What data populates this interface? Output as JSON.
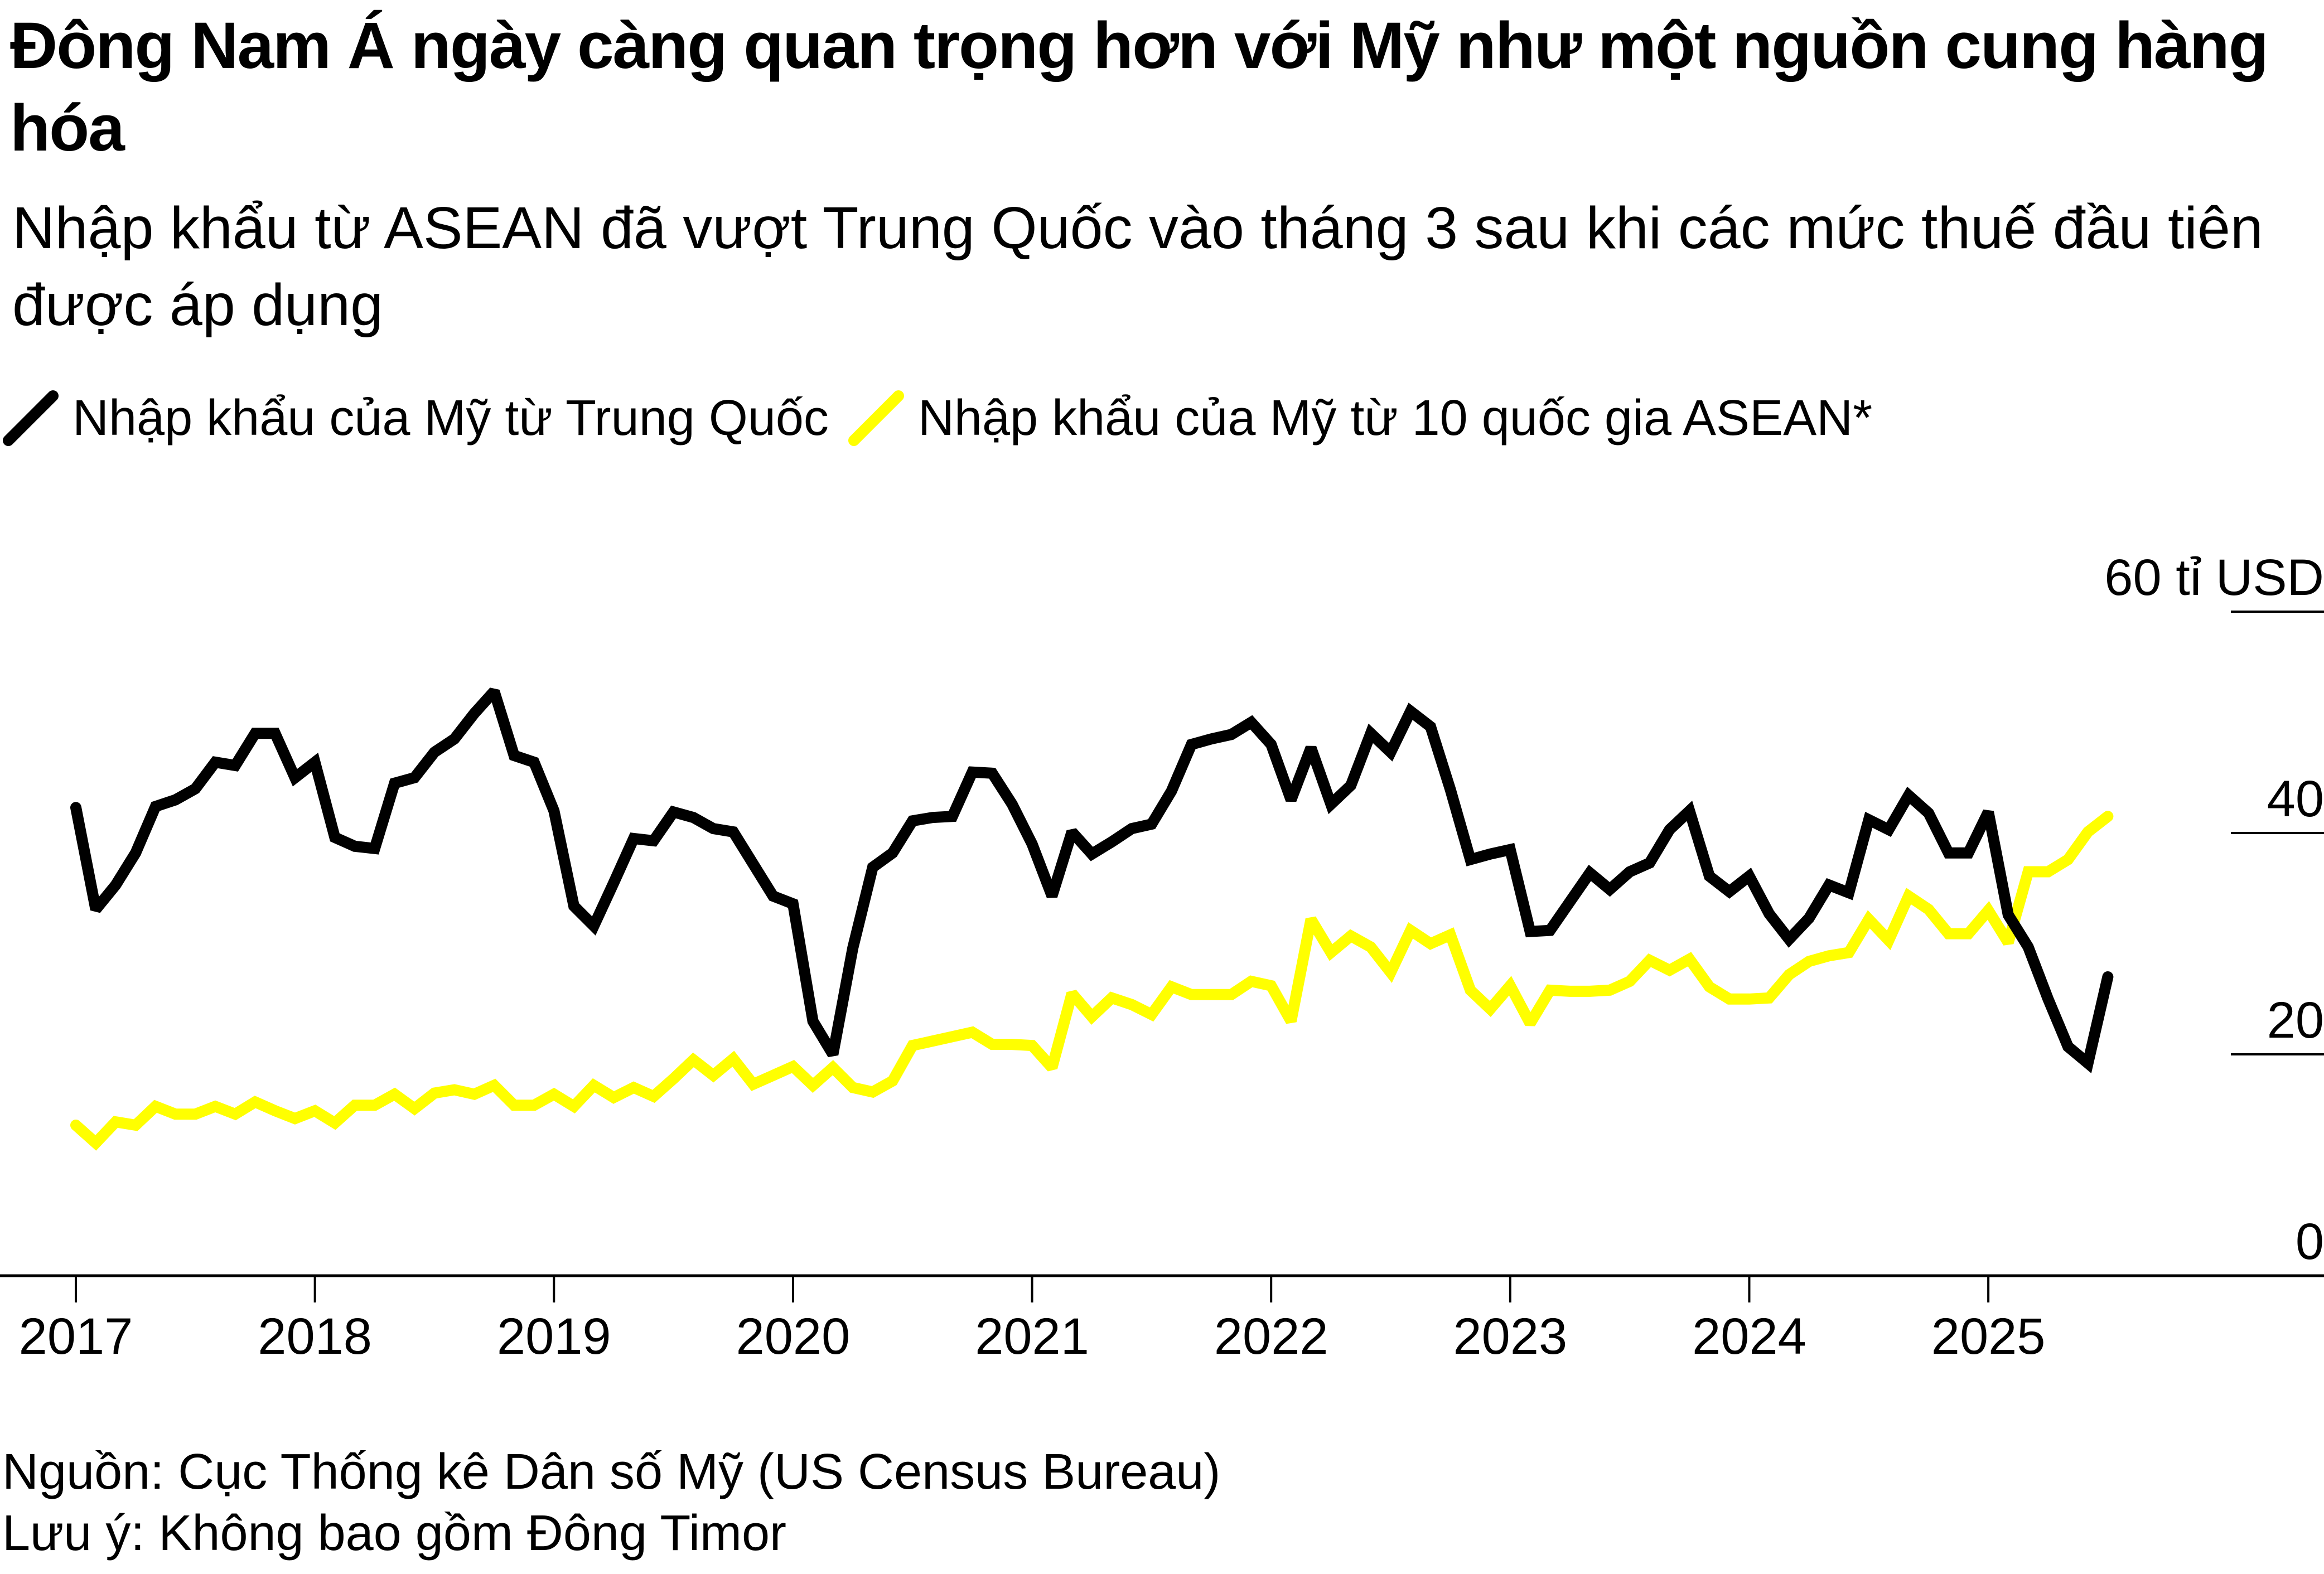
{
  "title": "Đông Nam Á ngày càng quan trọng hơn với Mỹ như một nguồn cung hàng hóa",
  "subtitle": "Nhập khẩu từ ASEAN đã vượt Trung Quốc vào tháng 3 sau khi các mức thuế đầu tiên được áp dụng",
  "legend": [
    {
      "label": "Nhập khẩu của Mỹ từ Trung Quốc",
      "color": "#000000"
    },
    {
      "label": "Nhập khẩu của Mỹ từ 10 quốc gia ASEAN*",
      "color": "#ffff00"
    }
  ],
  "footer": {
    "source": "Nguồn: Cục Thống kê Dân số Mỹ (US Census Bureau)",
    "note": "Lưu ý: Không bao gồm Đông Timor"
  },
  "chart_data": {
    "type": "line",
    "title": "Đông Nam Á ngày càng quan trọng hơn với Mỹ như một nguồn cung hàng hóa",
    "xlabel": "",
    "ylabel": "tỉ USD",
    "ylim": [
      0,
      60
    ],
    "xlim": [
      "2017-01",
      "2025-07"
    ],
    "y_ticks": [
      {
        "value": 0,
        "label": "0"
      },
      {
        "value": 20,
        "label": "20"
      },
      {
        "value": 40,
        "label": "40"
      },
      {
        "value": 60,
        "label": "60 tỉ USD"
      }
    ],
    "x_ticks": [
      "2017",
      "2018",
      "2019",
      "2020",
      "2021",
      "2022",
      "2023",
      "2024",
      "2025"
    ],
    "x_start": "2017-01",
    "frequency": "monthly",
    "grid": "y-axis right stubs only",
    "legend_position": "top-left",
    "series": [
      {
        "name": "Nhập khẩu của Mỹ từ Trung Quốc",
        "color": "#000000",
        "values": [
          42.3,
          33.1,
          35.3,
          38.2,
          42.4,
          43,
          44,
          46.4,
          46.1,
          49,
          49,
          45,
          46.4,
          39.6,
          38.8,
          38.6,
          44.5,
          45,
          47.3,
          48.5,
          50.8,
          52.8,
          47,
          46.4,
          42,
          33.4,
          31.6,
          35.5,
          39.5,
          39.3,
          41.9,
          41.4,
          40.4,
          40.1,
          37.2,
          34.3,
          33.6,
          23,
          20,
          29.6,
          36.9,
          38.2,
          41.1,
          41.4,
          41.5,
          45.5,
          45.4,
          42.6,
          39,
          34.3,
          40.1,
          38.1,
          39.2,
          40.4,
          40.8,
          43.8,
          48,
          48.5,
          48.9,
          50,
          48,
          43,
          47.7,
          42.6,
          44.3,
          49,
          47.3,
          51,
          49.6,
          43.9,
          37.6,
          38.1,
          38.5,
          31.1,
          31.2,
          33.8,
          36.4,
          34.9,
          36.5,
          37.3,
          40.3,
          42,
          36.1,
          34.7,
          36.1,
          32.7,
          30.4,
          32.3,
          35.3,
          34.6,
          41.2,
          40.3,
          43.4,
          41.8,
          38.2,
          38.2,
          41.9,
          32.6,
          29.7,
          25,
          20.7,
          19.2,
          27
        ]
      },
      {
        "name": "Nhập khẩu của Mỹ từ 10 quốc gia ASEAN*",
        "color": "#ffff00",
        "values": [
          13.6,
          12,
          13.9,
          13.6,
          15.3,
          14.6,
          14.6,
          15.3,
          14.6,
          15.7,
          14.9,
          14.2,
          14.9,
          13.8,
          15.4,
          15.4,
          16.4,
          15.1,
          16.5,
          16.8,
          16.4,
          17.2,
          15.4,
          15.4,
          16.4,
          15.3,
          17.2,
          16.1,
          17,
          16.2,
          17.8,
          19.5,
          18.1,
          19.6,
          17.3,
          18.1,
          18.9,
          17.2,
          18.8,
          17,
          16.6,
          17.6,
          20.8,
          21.2,
          21.6,
          22,
          20.9,
          20.9,
          20.8,
          18.8,
          25.5,
          23.4,
          25.1,
          24.5,
          23.6,
          26.1,
          25.4,
          25.4,
          25.4,
          26.6,
          26.2,
          23,
          32.2,
          29.2,
          30.7,
          29.7,
          27.4,
          31.2,
          30,
          30.8,
          25.8,
          24.1,
          26.2,
          22.8,
          25.8,
          25.7,
          25.7,
          25.8,
          26.6,
          28.5,
          27.6,
          28.6,
          26.1,
          25,
          25,
          25.1,
          27.2,
          28.4,
          28.9,
          29.2,
          32.2,
          30.3,
          34.3,
          33.1,
          30.9,
          30.9,
          33,
          30.1,
          36.5,
          36.5,
          37.6,
          40.1,
          41.5
        ]
      }
    ]
  }
}
